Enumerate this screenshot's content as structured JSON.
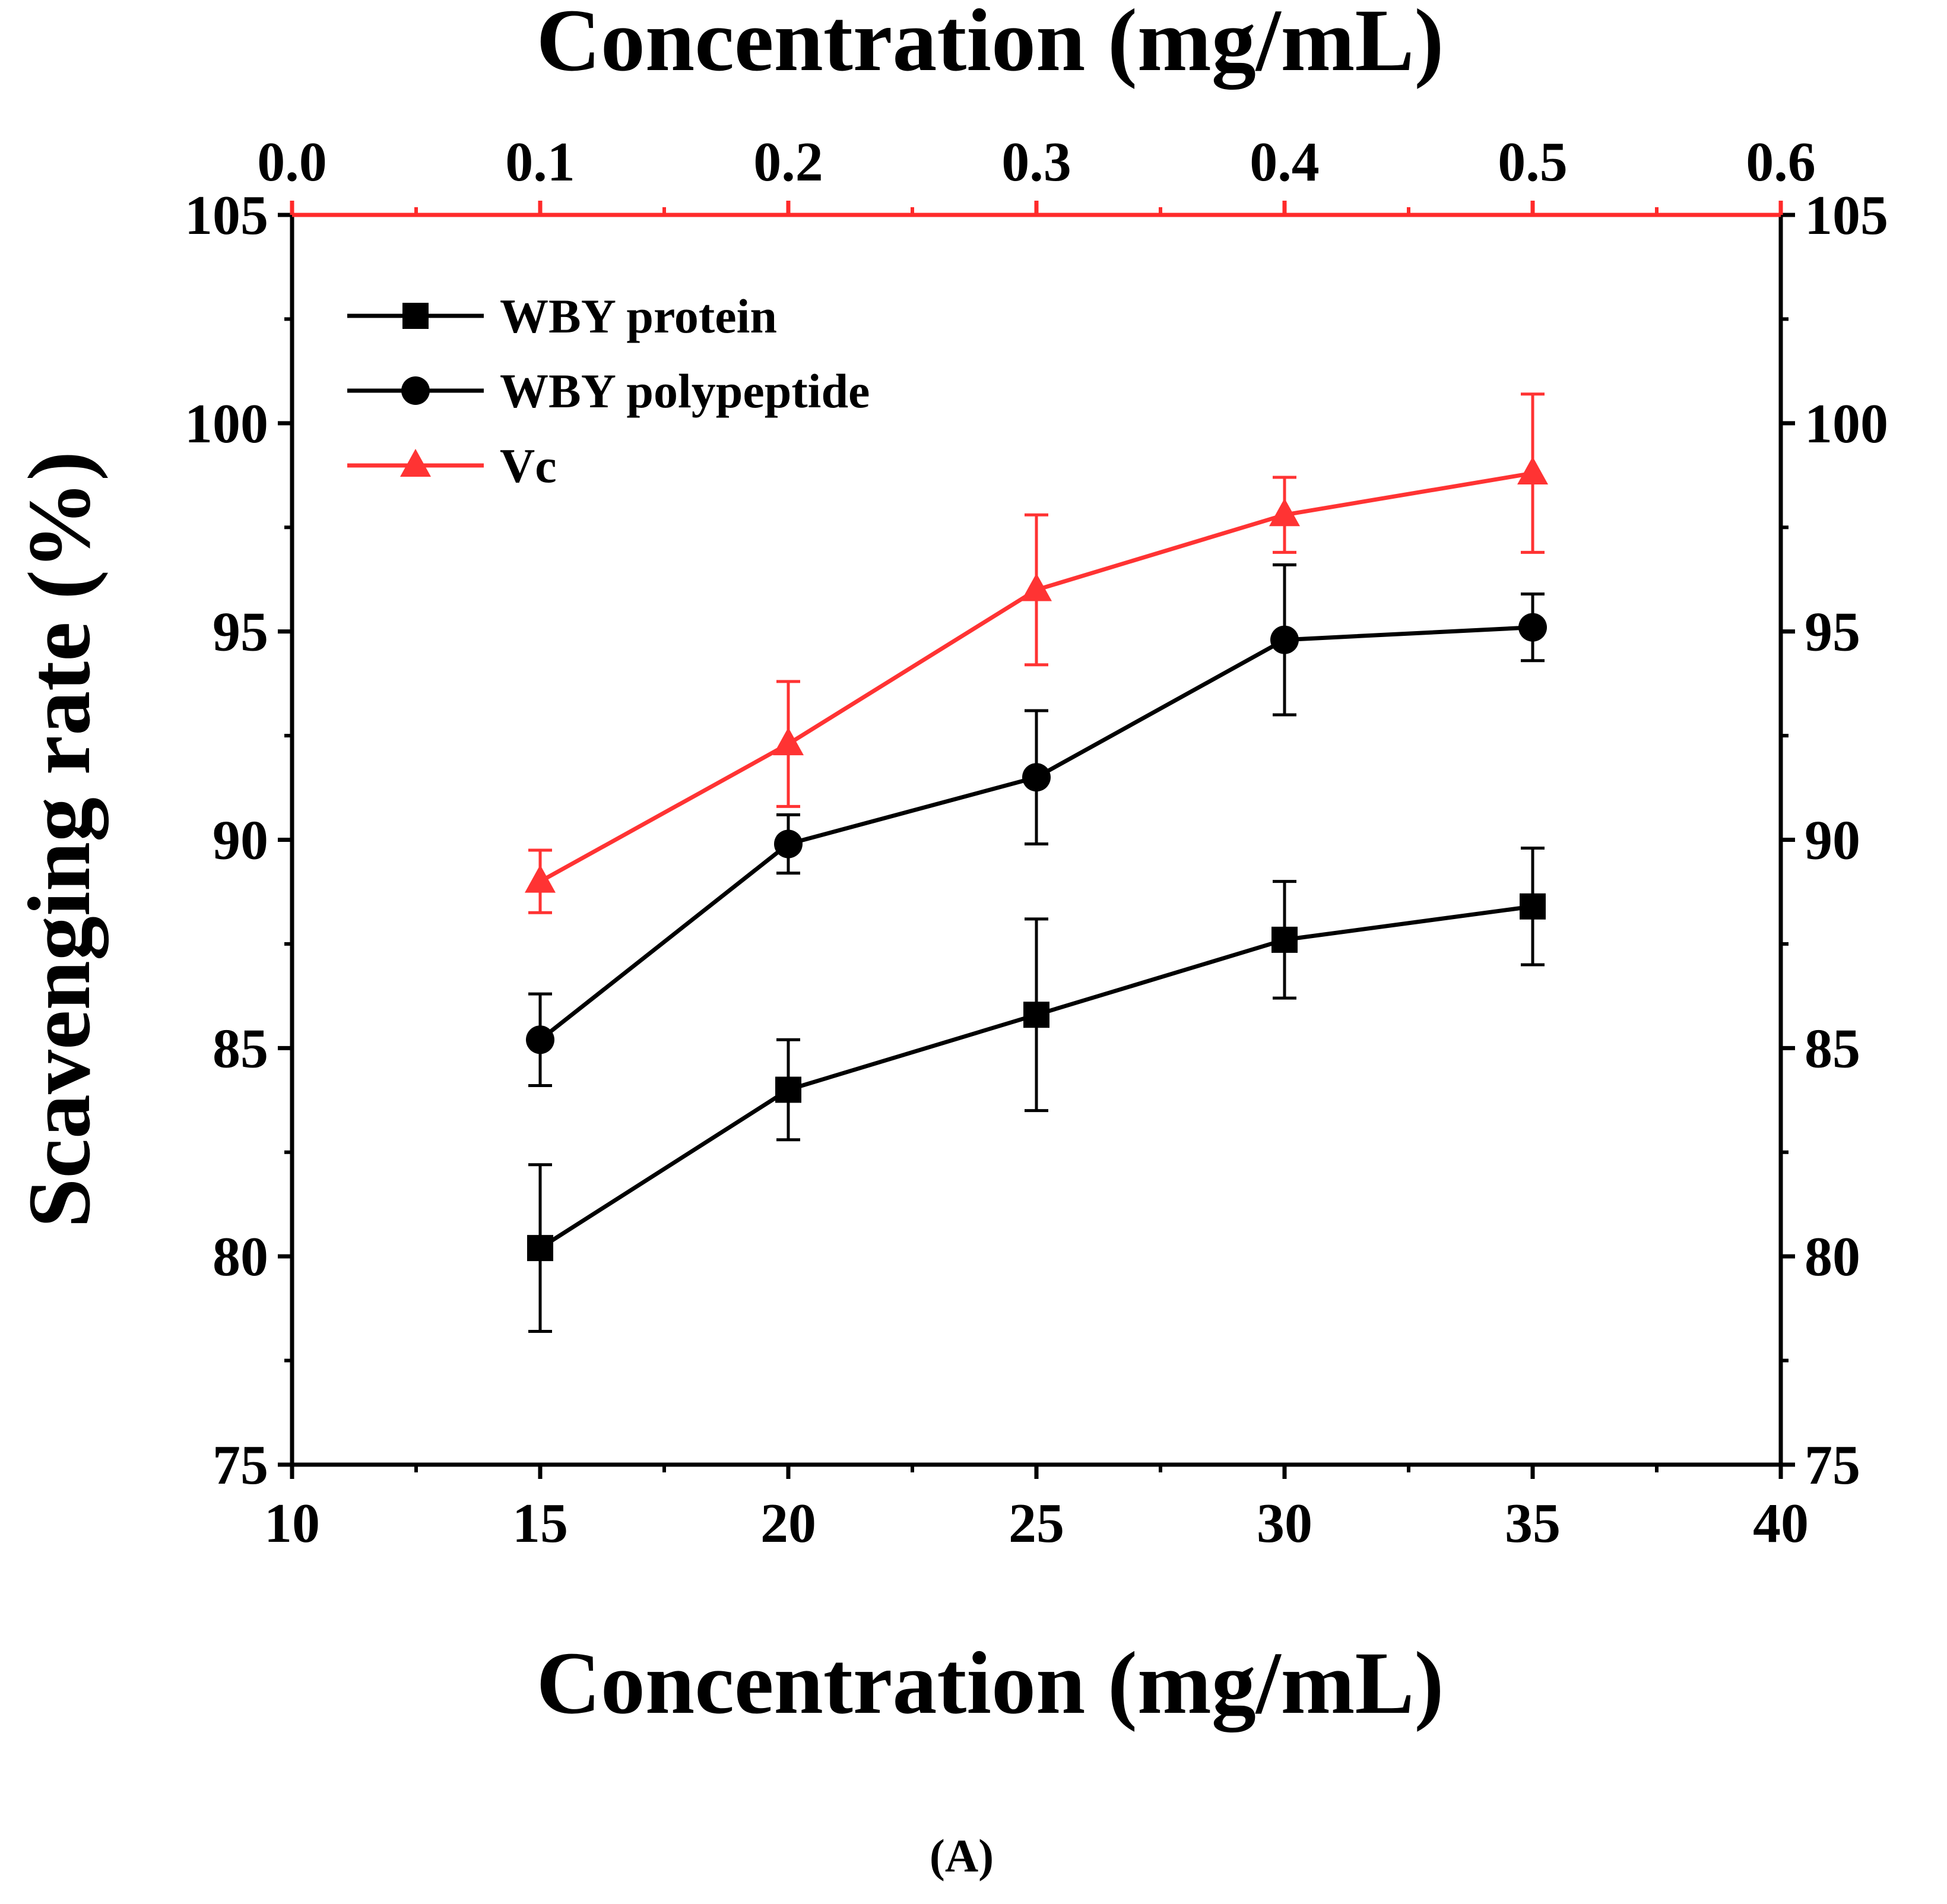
{
  "chart_data": {
    "type": "line",
    "caption": "(A)",
    "xlabel_bottom": "Concentration (mg/mL)",
    "xlabel_top": "Concentration (mg/mL)",
    "ylabel": "Scavenging rate (%)",
    "xlim_bottom": [
      10,
      40
    ],
    "xlim_top": [
      0.0,
      0.6
    ],
    "ylim": [
      75,
      105
    ],
    "xticks_bottom": [
      "10",
      "15",
      "20",
      "25",
      "30",
      "35",
      "40"
    ],
    "xticks_top": [
      "0.0",
      "0.1",
      "0.2",
      "0.3",
      "0.4",
      "0.5",
      "0.6"
    ],
    "yticks": [
      "75",
      "80",
      "85",
      "90",
      "95",
      "100",
      "105"
    ],
    "legend_position": "top-left",
    "series": [
      {
        "name": "WBY protein",
        "color": "#000000",
        "marker": "square",
        "axis": "bottom",
        "x": [
          15,
          20,
          25,
          30,
          35
        ],
        "y": [
          80.2,
          84.0,
          85.8,
          87.6,
          88.4
        ],
        "err": [
          2.0,
          1.2,
          2.3,
          1.4,
          1.4
        ]
      },
      {
        "name": "WBY polypeptide",
        "color": "#000000",
        "marker": "circle",
        "axis": "bottom",
        "x": [
          15,
          20,
          25,
          30,
          35
        ],
        "y": [
          85.2,
          89.9,
          91.5,
          94.8,
          95.1
        ],
        "err": [
          1.1,
          0.7,
          1.6,
          1.8,
          0.8
        ]
      },
      {
        "name": "Vc",
        "color": "#ff3333",
        "marker": "triangle",
        "axis": "top",
        "x": [
          0.1,
          0.2,
          0.3,
          0.4,
          0.5
        ],
        "y": [
          89.0,
          92.3,
          96.0,
          97.8,
          98.8
        ],
        "err": [
          0.75,
          1.5,
          1.8,
          0.9,
          1.9
        ]
      }
    ]
  }
}
